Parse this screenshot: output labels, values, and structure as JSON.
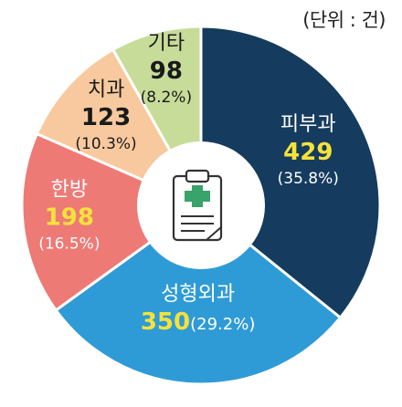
{
  "unit_label": "(단위 : 건)",
  "chart_data": {
    "type": "pie",
    "title": "",
    "unit": "건",
    "slices": [
      {
        "label": "피부과",
        "value": 429,
        "percent": "(35.8%)",
        "color": "#153c5e",
        "label_color": "#ffffff",
        "value_color": "#f6e23a"
      },
      {
        "label": "성형외과",
        "value": 350,
        "percent": "(29.2%)",
        "color": "#2f9bd6",
        "label_color": "#ffffff",
        "value_color": "#f6e23a"
      },
      {
        "label": "한방",
        "value": 198,
        "percent": "(16.5%)",
        "color": "#ee7a76",
        "label_color": "#ffffff",
        "value_color": "#f6e23a"
      },
      {
        "label": "치과",
        "value": 123,
        "percent": "(10.3%)",
        "color": "#f8c99e",
        "label_color": "#1a1a1a",
        "value_color": "#1a1a1a"
      },
      {
        "label": "기타",
        "value": 98,
        "percent": "(8.2%)",
        "color": "#c8dc9a",
        "label_color": "#1a1a1a",
        "value_color": "#1a1a1a"
      }
    ],
    "center_icon": "medical-clipboard-icon"
  }
}
